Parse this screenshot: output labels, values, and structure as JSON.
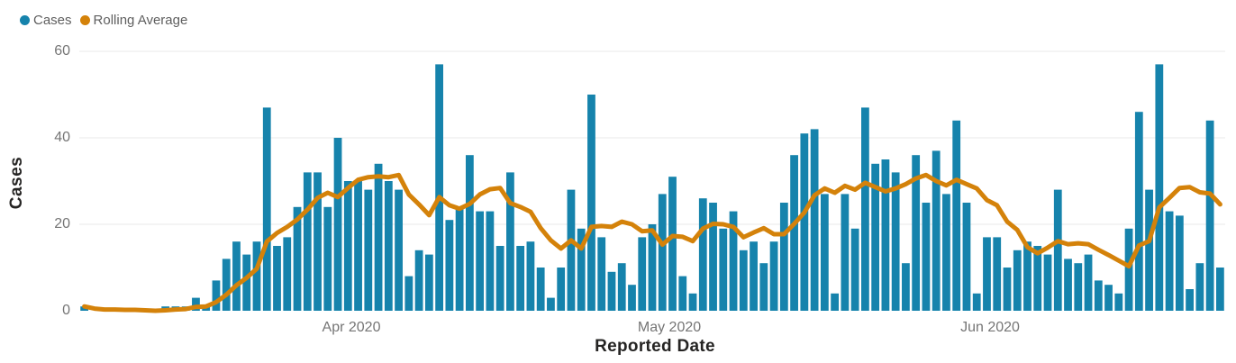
{
  "app": {
    "background": "#ffffff"
  },
  "legend": {
    "items": [
      {
        "label": "Cases",
        "color": "#1683AC",
        "marker": "circle"
      },
      {
        "label": "Rolling Average",
        "color": "#D4820A",
        "marker": "circle"
      }
    ]
  },
  "colors": {
    "bar": "#1683AC",
    "line": "#D4820A",
    "gridline": "#E9E9E9",
    "tick_label": "#757575",
    "axis_title": "#252423",
    "legend_text": "#5f5f5f"
  },
  "chart_data": {
    "type": "combo",
    "x_description": "daily reported dates (one bar per day), spanning early March 2020 to late June 2020",
    "n_points": 113,
    "series": [
      {
        "name": "Cases",
        "type": "bar",
        "color": "#1683AC",
        "values": [
          1,
          0,
          0,
          0,
          0,
          0,
          0,
          0,
          1,
          1,
          1,
          3,
          1,
          7,
          12,
          16,
          13,
          16,
          47,
          15,
          17,
          24,
          32,
          32,
          24,
          40,
          30,
          30,
          28,
          34,
          30,
          28,
          8,
          14,
          13,
          57,
          21,
          24,
          36,
          23,
          23,
          15,
          32,
          15,
          16,
          10,
          3,
          10,
          28,
          19,
          50,
          17,
          9,
          11,
          6,
          17,
          20,
          27,
          31,
          8,
          4,
          26,
          25,
          19,
          23,
          14,
          16,
          11,
          16,
          25,
          36,
          41,
          42,
          27,
          4,
          27,
          19,
          47,
          34,
          35,
          32,
          11,
          36,
          25,
          37,
          27,
          44,
          25,
          4,
          17,
          17,
          10,
          14,
          16,
          15,
          13,
          28,
          12,
          11,
          13,
          7,
          6,
          4,
          19,
          46,
          28,
          57,
          23,
          22,
          5,
          11,
          44,
          10
        ]
      },
      {
        "name": "Rolling Average",
        "type": "line",
        "color": "#D4820A",
        "values": [
          1.0,
          0.5,
          0.3,
          0.3,
          0.2,
          0.2,
          0.1,
          0.0,
          0.1,
          0.3,
          0.4,
          0.9,
          1.0,
          2.0,
          3.7,
          5.9,
          7.6,
          9.7,
          16.0,
          18.0,
          19.4,
          21.1,
          23.4,
          26.1,
          27.3,
          26.3,
          28.4,
          30.3,
          30.9,
          31.1,
          30.9,
          31.4,
          26.9,
          24.6,
          22.1,
          26.3,
          24.4,
          23.6,
          24.7,
          26.9,
          28.1,
          28.4,
          24.9,
          24.0,
          22.9,
          19.1,
          16.3,
          14.4,
          16.3,
          14.4,
          19.4,
          19.6,
          19.4,
          20.6,
          20.0,
          18.4,
          18.6,
          15.3,
          17.3,
          17.1,
          16.1,
          19.0,
          20.1,
          20.0,
          19.4,
          17.0,
          18.1,
          19.1,
          17.7,
          17.7,
          20.1,
          22.7,
          26.7,
          28.3,
          27.3,
          28.9,
          28.0,
          29.6,
          28.6,
          27.6,
          28.3,
          29.3,
          30.6,
          31.4,
          30.0,
          29.0,
          30.3,
          29.3,
          28.3,
          25.6,
          24.4,
          20.6,
          18.7,
          14.7,
          13.3,
          14.6,
          16.1,
          15.4,
          15.6,
          15.4,
          14.1,
          12.9,
          11.6,
          10.3,
          15.1,
          16.1,
          23.9,
          26.1,
          28.4,
          28.6,
          27.4,
          27.1,
          24.6
        ]
      }
    ],
    "x_axis": {
      "title": "Reported Date",
      "ticks": [
        {
          "label": "Apr 2020",
          "index": 26.3
        },
        {
          "label": "May 2020",
          "index": 57.7
        },
        {
          "label": "Jun 2020",
          "index": 89.3
        }
      ]
    },
    "y_axis": {
      "title": "Cases",
      "ticks": [
        0,
        20,
        40,
        60
      ],
      "range": [
        0,
        60
      ]
    },
    "grid": "horizontal",
    "legend_position": "top-left",
    "title": ""
  }
}
